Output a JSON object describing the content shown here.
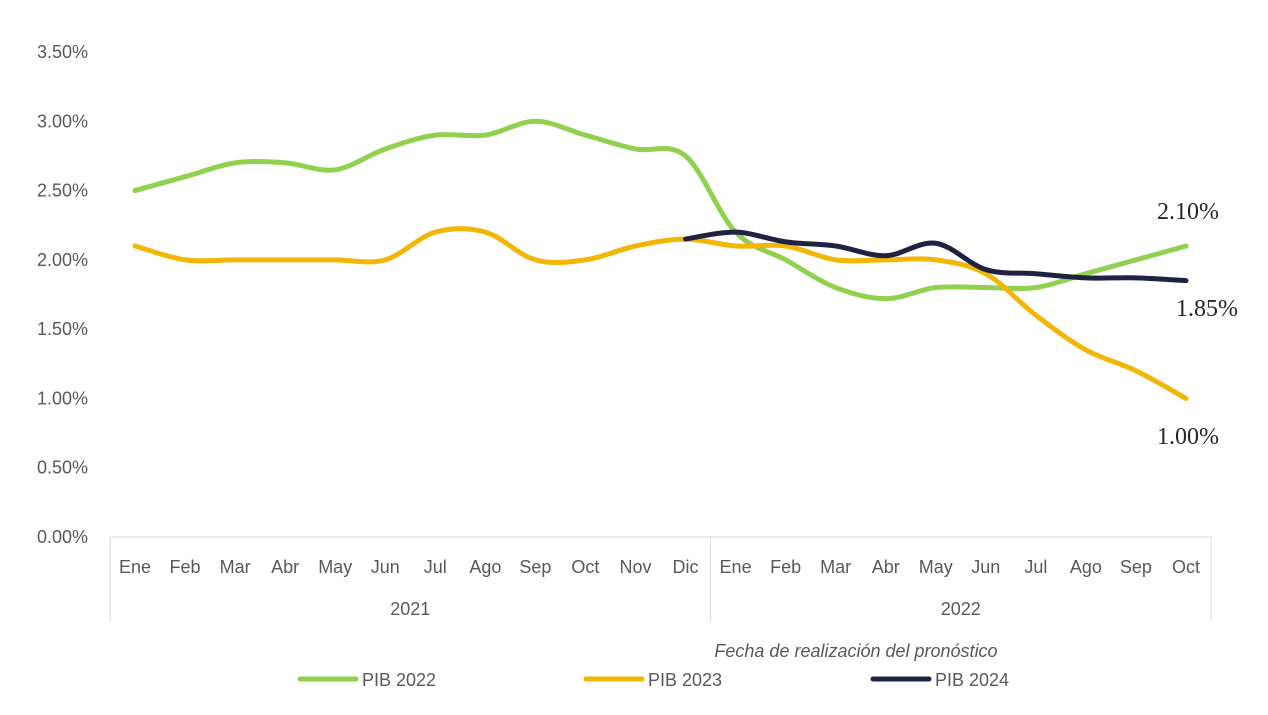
{
  "chart_data": {
    "type": "line",
    "xlabel": "Fecha de realización del pronóstico",
    "ylim": [
      0,
      0.035
    ],
    "yticks": [
      "0.00%",
      "0.50%",
      "1.00%",
      "1.50%",
      "2.00%",
      "2.50%",
      "3.00%",
      "3.50%"
    ],
    "categories": [
      "Ene",
      "Feb",
      "Mar",
      "Abr",
      "May",
      "Jun",
      "Jul",
      "Ago",
      "Sep",
      "Oct",
      "Nov",
      "Dic",
      "Ene",
      "Feb",
      "Mar",
      "Abr",
      "May",
      "Jun",
      "Jul",
      "Ago",
      "Sep",
      "Oct"
    ],
    "groups": [
      {
        "label": "2021",
        "count": 12
      },
      {
        "label": "2022",
        "count": 10
      }
    ],
    "grid": false,
    "legend_position": "bottom",
    "series": [
      {
        "name": "PIB 2022",
        "color": "#92D050",
        "values": [
          0.025,
          0.026,
          0.027,
          0.027,
          0.0265,
          0.028,
          0.029,
          0.029,
          0.03,
          0.029,
          0.028,
          0.0275,
          0.022,
          0.02,
          0.018,
          0.0172,
          0.018,
          0.018,
          0.018,
          0.019,
          0.02,
          0.021
        ],
        "end_label": "2.10%"
      },
      {
        "name": "PIB 2023",
        "color": "#F2B705",
        "values": [
          0.021,
          0.02,
          0.02,
          0.02,
          0.02,
          0.02,
          0.022,
          0.022,
          0.02,
          0.02,
          0.021,
          0.0215,
          0.021,
          0.021,
          0.02,
          0.02,
          0.02,
          0.019,
          0.016,
          0.0135,
          0.012,
          0.01
        ],
        "end_label": "1.00%"
      },
      {
        "name": "PIB 2024",
        "color": "#1F2243",
        "values": [
          null,
          null,
          null,
          null,
          null,
          null,
          null,
          null,
          null,
          null,
          null,
          0.0215,
          0.022,
          0.0213,
          0.021,
          0.0203,
          0.0212,
          0.0193,
          0.019,
          0.0187,
          0.0187,
          0.0185
        ],
        "end_label": "1.85%"
      }
    ]
  }
}
